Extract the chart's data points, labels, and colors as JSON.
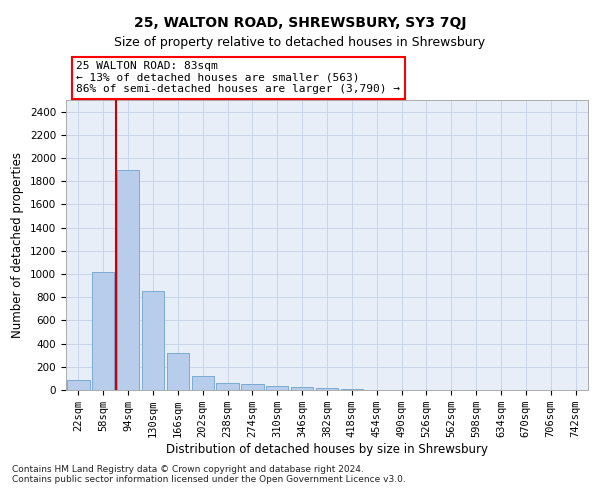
{
  "title": "25, WALTON ROAD, SHREWSBURY, SY3 7QJ",
  "subtitle": "Size of property relative to detached houses in Shrewsbury",
  "xlabel": "Distribution of detached houses by size in Shrewsbury",
  "ylabel": "Number of detached properties",
  "categories": [
    "22sqm",
    "58sqm",
    "94sqm",
    "130sqm",
    "166sqm",
    "202sqm",
    "238sqm",
    "274sqm",
    "310sqm",
    "346sqm",
    "382sqm",
    "418sqm",
    "454sqm",
    "490sqm",
    "526sqm",
    "562sqm",
    "598sqm",
    "634sqm",
    "670sqm",
    "706sqm",
    "742sqm"
  ],
  "values": [
    90,
    1020,
    1900,
    855,
    320,
    125,
    60,
    50,
    35,
    25,
    15,
    10,
    3,
    2,
    1,
    1,
    0,
    0,
    0,
    0,
    0
  ],
  "bar_color": "#b8ccec",
  "bar_edge_color": "#7aaad4",
  "annotation_text_line1": "25 WALTON ROAD: 83sqm",
  "annotation_text_line2": "← 13% of detached houses are smaller (563)",
  "annotation_text_line3": "86% of semi-detached houses are larger (3,790) →",
  "annotation_box_color": "white",
  "annotation_box_edge": "red",
  "ylim": [
    0,
    2500
  ],
  "yticks": [
    0,
    200,
    400,
    600,
    800,
    1000,
    1200,
    1400,
    1600,
    1800,
    2000,
    2200,
    2400
  ],
  "grid_color": "#c8d4e8",
  "background_color": "#e8eef8",
  "footer_line1": "Contains HM Land Registry data © Crown copyright and database right 2024.",
  "footer_line2": "Contains public sector information licensed under the Open Government Licence v3.0.",
  "title_fontsize": 10,
  "subtitle_fontsize": 9,
  "xlabel_fontsize": 8.5,
  "ylabel_fontsize": 8.5,
  "tick_fontsize": 7.5,
  "footer_fontsize": 6.5,
  "annotation_fontsize": 8,
  "property_line_color": "#cc0000",
  "property_line_x": 1.5
}
